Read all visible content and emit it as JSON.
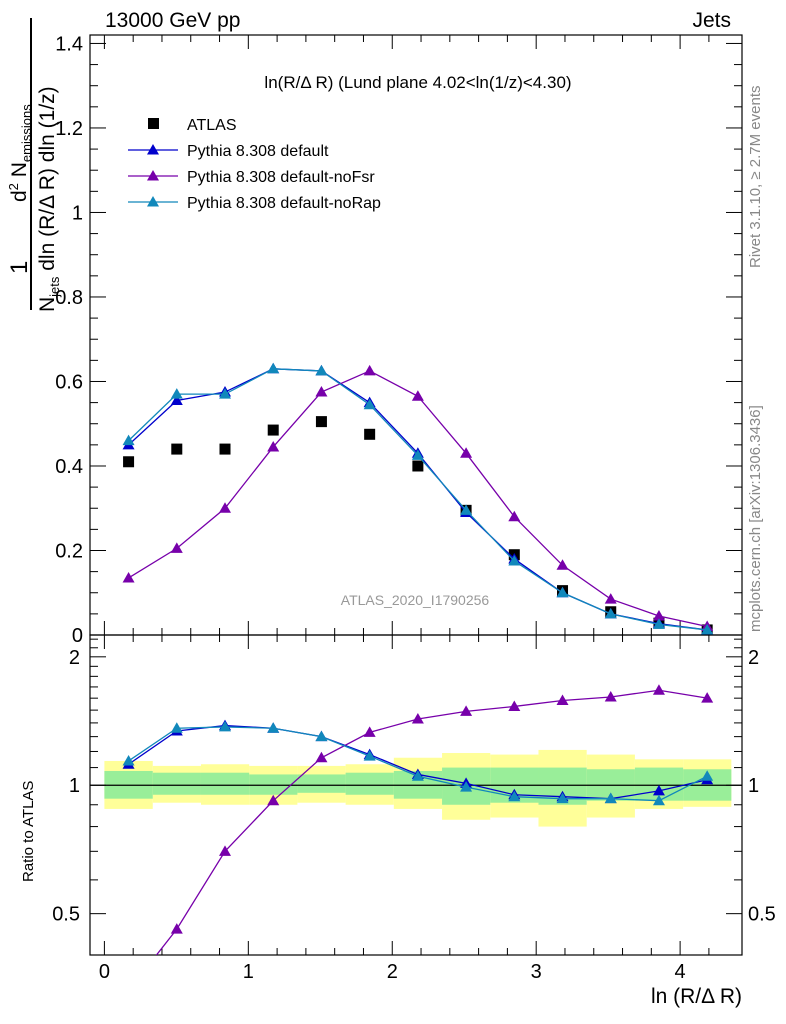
{
  "header": {
    "left": "13000 GeV pp",
    "right": "Jets"
  },
  "side_text": {
    "rivet": "Rivet 3.1.10, ≥ 2.7M events",
    "mcplots": "mcplots.cern.ch [arXiv:1306.3436]"
  },
  "chart_data": {
    "type": "scatter",
    "title": "ln(R/Δ R) (Lund plane 4.02<ln(1/z)<4.30)",
    "ylabel": "1/N_jets d²N_emissions / dln(R/ΔR) dln(1/z)",
    "ylabel_parts": {
      "one": "1",
      "num_main": "d",
      "num_sup": "2",
      "num_N": "N",
      "num_sub": "emissions",
      "den_N": "N",
      "den_sub": "jets",
      "den_rest": "dln (R/Δ R) dln (1/z)"
    },
    "xlabel": "ln (R/Δ R)",
    "watermark": "ATLAS_2020_I1790256",
    "xlim": [
      -0.1,
      4.43
    ],
    "ylim": [
      0,
      1.42
    ],
    "x_ticks": [
      0,
      1,
      2,
      3,
      4
    ],
    "y_ticks": [
      0,
      0.2,
      0.4,
      0.6,
      0.8,
      1,
      1.2,
      1.4
    ],
    "y_tick_labels": [
      "0",
      "0.2",
      "0.4",
      "0.6",
      "0.8",
      "1",
      "1.2",
      "1.4"
    ],
    "x": [
      0.168,
      0.503,
      0.838,
      1.173,
      1.508,
      1.843,
      2.178,
      2.513,
      2.848,
      3.183,
      3.518,
      3.853,
      4.188
    ],
    "series": [
      {
        "name": "ATLAS",
        "color": "#000000",
        "marker": "square",
        "values": [
          0.41,
          0.44,
          0.44,
          0.485,
          0.505,
          0.475,
          0.4,
          0.295,
          0.19,
          0.105,
          0.055,
          0.028,
          0.012
        ]
      },
      {
        "name": "Pythia 8.308 default",
        "color": "#0000cc",
        "marker": "triangle",
        "values": [
          0.45,
          0.555,
          0.575,
          0.63,
          0.625,
          0.55,
          0.43,
          0.29,
          0.18,
          0.1,
          0.05,
          0.027,
          0.012
        ]
      },
      {
        "name": "Pythia 8.308 default-noFsr",
        "color": "#7700aa",
        "marker": "triangle",
        "values": [
          0.135,
          0.205,
          0.3,
          0.445,
          0.575,
          0.625,
          0.565,
          0.43,
          0.28,
          0.165,
          0.085,
          0.045,
          0.02
        ]
      },
      {
        "name": "Pythia 8.308 default-noRap",
        "color": "#1188bb",
        "marker": "triangle",
        "values": [
          0.46,
          0.57,
          0.57,
          0.63,
          0.625,
          0.545,
          0.425,
          0.295,
          0.175,
          0.1,
          0.05,
          0.025,
          0.012
        ]
      }
    ],
    "ratio": {
      "ylabel": "Ratio to ATLAS",
      "ylim": [
        0.4,
        2.25
      ],
      "y_ticks": [
        0.5,
        1,
        2
      ],
      "y_tick_labels": [
        "0.5",
        "1",
        "2"
      ],
      "reference": 1,
      "band_edges": [
        0,
        0.336,
        0.671,
        1.006,
        1.341,
        1.676,
        2.011,
        2.346,
        2.681,
        3.016,
        3.351,
        3.686,
        4.021,
        4.356
      ],
      "band_green": [
        [
          0.93,
          1.08
        ],
        [
          0.95,
          1.07
        ],
        [
          0.95,
          1.07
        ],
        [
          0.95,
          1.06
        ],
        [
          0.96,
          1.06
        ],
        [
          0.95,
          1.07
        ],
        [
          0.93,
          1.08
        ],
        [
          0.9,
          1.1
        ],
        [
          0.91,
          1.1
        ],
        [
          0.9,
          1.1
        ],
        [
          0.92,
          1.09
        ],
        [
          0.92,
          1.1
        ],
        [
          0.92,
          1.09
        ]
      ],
      "band_yellow": [
        [
          0.88,
          1.14
        ],
        [
          0.91,
          1.11
        ],
        [
          0.9,
          1.12
        ],
        [
          0.9,
          1.11
        ],
        [
          0.91,
          1.11
        ],
        [
          0.9,
          1.12
        ],
        [
          0.88,
          1.16
        ],
        [
          0.83,
          1.19
        ],
        [
          0.84,
          1.18
        ],
        [
          0.8,
          1.21
        ],
        [
          0.84,
          1.18
        ],
        [
          0.88,
          1.15
        ],
        [
          0.89,
          1.15
        ]
      ],
      "series": [
        {
          "name": "Pythia 8.308 default",
          "color": "#0000cc",
          "values": [
            1.12,
            1.34,
            1.38,
            1.36,
            1.3,
            1.18,
            1.06,
            1.01,
            0.95,
            0.94,
            0.93,
            0.97,
            1.03
          ]
        },
        {
          "name": "Pythia 8.308 default-noFsr",
          "color": "#7700aa",
          "values": [
            0.33,
            0.46,
            0.7,
            0.92,
            1.16,
            1.33,
            1.43,
            1.49,
            1.53,
            1.58,
            1.61,
            1.67,
            1.6
          ]
        },
        {
          "name": "Pythia 8.308 default-noRap",
          "color": "#1188bb",
          "values": [
            1.14,
            1.36,
            1.37,
            1.36,
            1.3,
            1.17,
            1.05,
            0.99,
            0.94,
            0.93,
            0.93,
            0.92,
            1.05
          ]
        }
      ]
    }
  }
}
